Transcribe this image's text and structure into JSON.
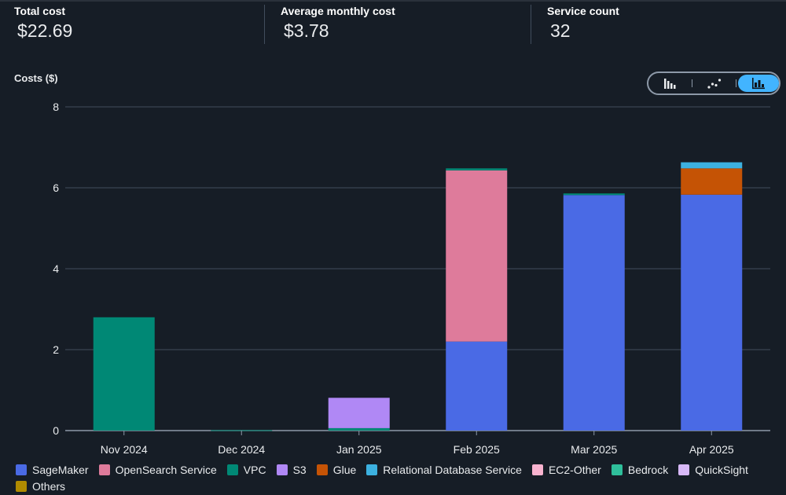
{
  "summary": {
    "total": {
      "label": "Total cost",
      "value": "$22.69"
    },
    "average": {
      "label": "Average monthly cost",
      "value": "$3.78"
    },
    "services": {
      "label": "Service count",
      "value": "32"
    }
  },
  "chart_header": {
    "costs_label": "Costs ($)"
  },
  "view_toggle": {
    "options": [
      {
        "icon": "bar-chart-icon",
        "selected": false
      },
      {
        "icon": "line-chart-icon",
        "selected": false
      },
      {
        "icon": "stacked-bar-chart-icon",
        "selected": true
      }
    ]
  },
  "colors": {
    "grid": "#414d5c",
    "tick": "#e9ebed",
    "accent": "#42b4ff"
  },
  "chart_data": {
    "type": "bar",
    "stacked": true,
    "title": "",
    "xlabel": "",
    "ylabel": "Costs ($)",
    "ylim": [
      0,
      8
    ],
    "yticks": [
      "0",
      "2",
      "4",
      "6",
      "8"
    ],
    "grid": true,
    "legend_position": "bottom",
    "categories": [
      "Nov 2024",
      "Dec 2024",
      "Jan 2025",
      "Feb 2025",
      "Mar 2025",
      "Apr 2025"
    ],
    "series": [
      {
        "name": "SageMaker",
        "color": "#4a6ae5",
        "values": [
          0,
          0,
          0,
          2.2,
          5.82,
          5.83
        ]
      },
      {
        "name": "OpenSearch Service",
        "color": "#de7b9b",
        "values": [
          0,
          0,
          0,
          4.23,
          0,
          0
        ]
      },
      {
        "name": "VPC",
        "color": "#008875",
        "values": [
          2.8,
          0.01,
          0.06,
          0.05,
          0.04,
          0
        ]
      },
      {
        "name": "S3",
        "color": "#b088f5",
        "values": [
          0,
          0,
          0.75,
          0,
          0,
          0
        ]
      },
      {
        "name": "Glue",
        "color": "#c55305",
        "values": [
          0,
          0,
          0,
          0,
          0,
          0.65
        ]
      },
      {
        "name": "Relational Database Service",
        "color": "#3cb1e0",
        "values": [
          0,
          0,
          0,
          0,
          0,
          0.15
        ]
      },
      {
        "name": "EC2-Other",
        "color": "#f8b3cf",
        "values": [
          0,
          0,
          0,
          0,
          0,
          0
        ]
      },
      {
        "name": "Bedrock",
        "color": "#2fbf9b",
        "values": [
          0,
          0,
          0,
          0,
          0,
          0
        ]
      },
      {
        "name": "QuickSight",
        "color": "#d7b8f7",
        "values": [
          0,
          0,
          0,
          0,
          0,
          0
        ]
      },
      {
        "name": "Others",
        "color": "#b08b00",
        "values": [
          0,
          0,
          0,
          0,
          0,
          0
        ]
      }
    ]
  }
}
